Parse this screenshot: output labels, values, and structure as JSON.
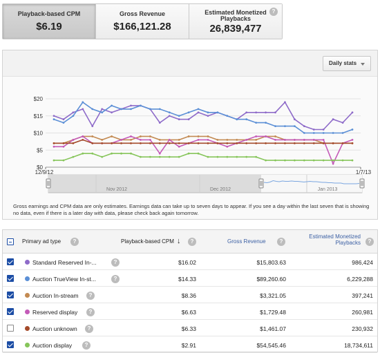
{
  "metrics": [
    {
      "label": "Playback-based CPM",
      "value": "$6.19"
    },
    {
      "label": "Gross Revenue",
      "value": "$166,121.28"
    },
    {
      "label": "Estimated Monetized Playbacks",
      "value": "26,839,477"
    }
  ],
  "help_glyph": "?",
  "controls": {
    "period_dropdown": "Daily stats"
  },
  "chart_data": {
    "type": "line",
    "y_ticks": [
      "$0",
      "$5",
      "$10",
      "$15",
      "$20"
    ],
    "ylim": [
      0,
      20
    ],
    "x_start_label": "12/9/12",
    "x_end_label": "1/7/13",
    "series": [
      {
        "color": "#8e6bc9",
        "values": [
          15,
          14,
          16,
          17,
          12,
          17,
          16,
          17,
          18,
          18,
          17,
          13,
          15,
          14,
          14,
          16,
          15,
          16,
          15,
          14,
          16,
          16,
          16,
          16,
          19,
          14,
          12,
          11,
          11,
          14,
          13,
          16
        ]
      },
      {
        "color": "#5b8fd6",
        "values": [
          14,
          13,
          15,
          19,
          17,
          16,
          18,
          17,
          17,
          18,
          17,
          17,
          16,
          15,
          16,
          17,
          16,
          16,
          15,
          14,
          14,
          13,
          13,
          12,
          12,
          12,
          10,
          10,
          10,
          10,
          10,
          11
        ]
      },
      {
        "color": "#c38a52",
        "values": [
          7,
          7,
          8,
          9,
          9,
          8,
          9,
          8,
          8,
          9,
          9,
          8,
          8,
          8,
          9,
          9,
          9,
          8,
          8,
          8,
          8,
          8,
          9,
          9,
          8,
          8,
          8,
          8,
          7,
          7,
          7,
          7
        ]
      },
      {
        "color": "#c45bb8",
        "values": [
          6,
          6,
          8,
          9,
          7,
          7,
          7,
          8,
          9,
          8,
          8,
          4,
          8,
          6,
          7,
          8,
          8,
          7,
          6,
          7,
          8,
          9,
          9,
          8,
          8,
          8,
          8,
          8,
          8,
          1,
          7,
          8
        ]
      },
      {
        "color": "#a44a2a",
        "values": [
          7,
          7,
          7,
          8,
          7,
          7,
          7,
          7,
          7,
          7,
          7,
          7,
          7,
          7,
          7,
          7,
          7,
          7,
          7,
          7,
          7,
          7,
          7,
          7,
          7,
          7,
          7,
          7,
          7,
          7,
          7,
          7
        ]
      },
      {
        "color": "#86c55a",
        "values": [
          2,
          2,
          3,
          4,
          4,
          3,
          4,
          4,
          4,
          3,
          3,
          3,
          3,
          3,
          4,
          4,
          3,
          3,
          3,
          3,
          3,
          3,
          2,
          2,
          2,
          2,
          2,
          2,
          2,
          2,
          2,
          2
        ]
      }
    ],
    "navigator": {
      "labels": [
        "Nov 2012",
        "Dec 2012",
        "Jan 2013"
      ]
    }
  },
  "disclaimer": "Gross earnings and CPM data are only estimates. Earnings data can take up to seven days to appear. If you see a day within the last seven that is showing no data, even if there is a later day with data, please check back again tomorrow.",
  "table": {
    "headers": {
      "type": "Primary ad type",
      "cpm": "Playback-based CPM",
      "sort_arrow": "↓",
      "revenue": "Gross Revenue",
      "playbacks": "Estimated Monetized Playbacks"
    },
    "rows": [
      {
        "checked": true,
        "color": "#8e6bc9",
        "name": "Standard Reserved In-...",
        "cpm": "$16.02",
        "revenue": "$15,803.63",
        "playbacks": "986,424"
      },
      {
        "checked": true,
        "color": "#5b8fd6",
        "name": "Auction TrueView In-st...",
        "cpm": "$14.33",
        "revenue": "$89,260.60",
        "playbacks": "6,229,288"
      },
      {
        "checked": true,
        "color": "#c38a52",
        "name": "Auction In-stream",
        "cpm": "$8.36",
        "revenue": "$3,321.05",
        "playbacks": "397,241"
      },
      {
        "checked": true,
        "color": "#c45bb8",
        "name": "Reserved display",
        "cpm": "$6.63",
        "revenue": "$1,729.48",
        "playbacks": "260,981"
      },
      {
        "checked": false,
        "color": "#a44a2a",
        "name": "Auction unknown",
        "cpm": "$6.33",
        "revenue": "$1,461.07",
        "playbacks": "230,932"
      },
      {
        "checked": true,
        "color": "#86c55a",
        "name": "Auction display",
        "cpm": "$2.91",
        "revenue": "$54,545.46",
        "playbacks": "18,734,611"
      }
    ]
  }
}
